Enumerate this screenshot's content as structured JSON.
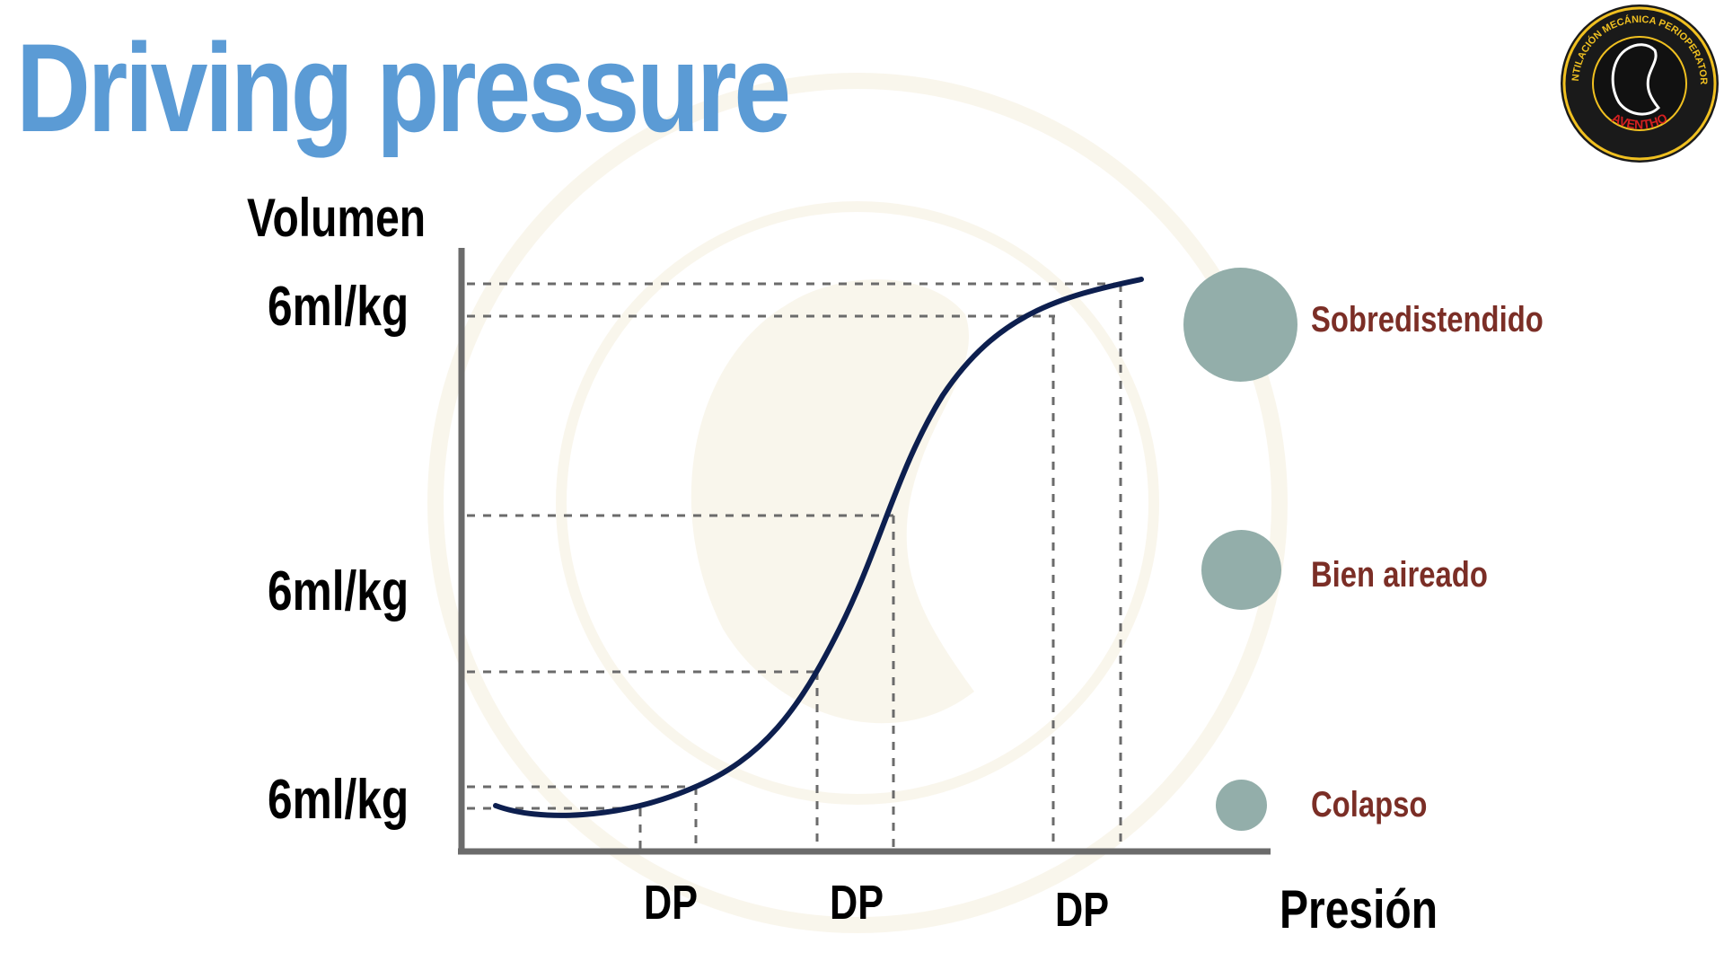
{
  "title": "Driving pressure",
  "axes": {
    "y_title": "Volumen",
    "x_title": "Presión",
    "y_ticks": [
      "6ml/kg",
      "6ml/kg",
      "6ml/kg"
    ],
    "x_ticks": [
      "DP",
      "DP",
      "DP"
    ]
  },
  "legend": [
    {
      "label": "Sobredistendido",
      "size": "large"
    },
    {
      "label": "Bien aireado",
      "size": "medium"
    },
    {
      "label": "Colapso",
      "size": "small"
    }
  ],
  "logo": {
    "ring_text": "VENTILACIÓN MECÁNICA PERIOPERATORIA",
    "brand": "AVENTHO"
  },
  "colors": {
    "title": "#5b9bd5",
    "curve": "#0d1f4f",
    "axis": "#6b6b6b",
    "legend_text": "#7b2e26",
    "alveolus": "#93aeaa",
    "brand": "#d42020",
    "logo_text": "#f0c020"
  }
}
